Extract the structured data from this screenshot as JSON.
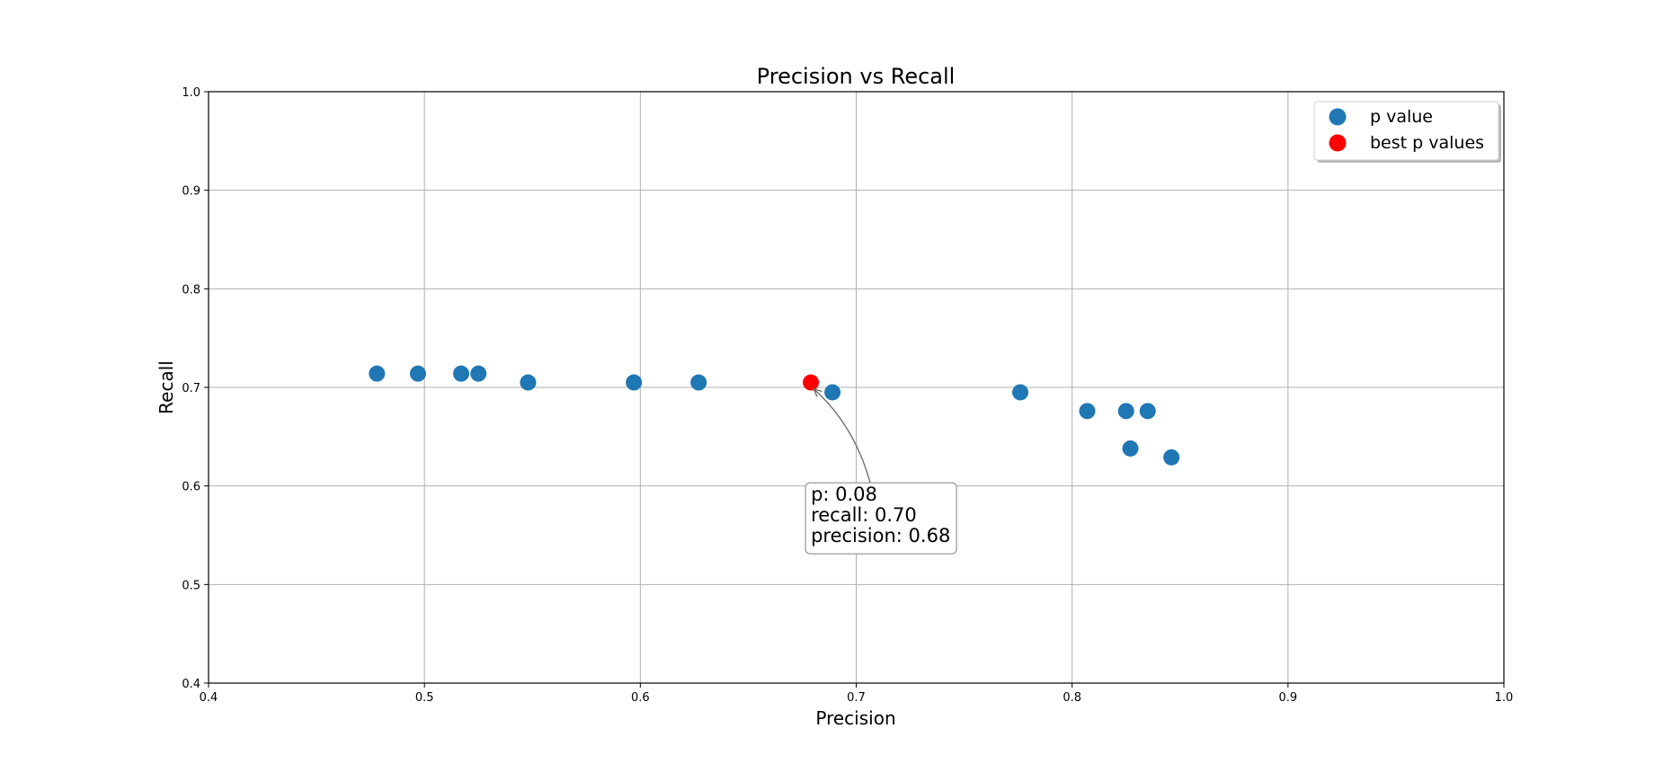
{
  "chart_data": {
    "type": "scatter",
    "title": "Precision vs Recall",
    "xlabel": "Precision",
    "ylabel": "Recall",
    "xlim": [
      0.4,
      1.0
    ],
    "ylim": [
      0.4,
      1.0
    ],
    "xticks": [
      "0.4",
      "0.5",
      "0.6",
      "0.7",
      "0.8",
      "0.9",
      "1.0"
    ],
    "yticks": [
      "0.4",
      "0.5",
      "0.6",
      "0.7",
      "0.8",
      "0.9",
      "1.0"
    ],
    "grid": true,
    "legend_position": "top-right",
    "series": [
      {
        "name": "p value",
        "color": "#1f77b4",
        "points": [
          {
            "x": 0.478,
            "y": 0.714
          },
          {
            "x": 0.497,
            "y": 0.714
          },
          {
            "x": 0.517,
            "y": 0.714
          },
          {
            "x": 0.525,
            "y": 0.714
          },
          {
            "x": 0.548,
            "y": 0.705
          },
          {
            "x": 0.597,
            "y": 0.705
          },
          {
            "x": 0.627,
            "y": 0.705
          },
          {
            "x": 0.689,
            "y": 0.695
          },
          {
            "x": 0.776,
            "y": 0.695
          },
          {
            "x": 0.807,
            "y": 0.676
          },
          {
            "x": 0.825,
            "y": 0.676
          },
          {
            "x": 0.835,
            "y": 0.676
          },
          {
            "x": 0.827,
            "y": 0.638
          },
          {
            "x": 0.846,
            "y": 0.629
          }
        ]
      },
      {
        "name": "best p values",
        "color": "#ff0000",
        "points": [
          {
            "x": 0.679,
            "y": 0.705
          }
        ]
      }
    ],
    "annotation": {
      "lines": [
        "p: 0.08",
        "recall: 0.70",
        "precision: 0.68"
      ],
      "target": {
        "x": 0.679,
        "y": 0.705
      },
      "text_at": {
        "x": 0.679,
        "y": 0.585
      }
    }
  }
}
